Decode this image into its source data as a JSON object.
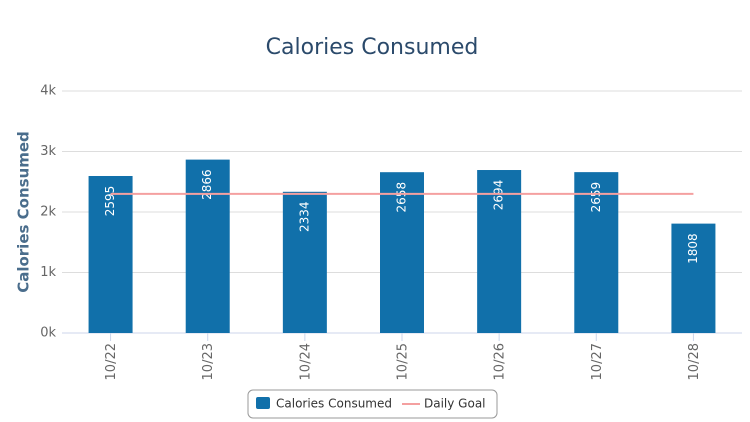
{
  "chart_data": {
    "type": "bar",
    "title": "Calories Consumed",
    "y_label": "Calories Consumed",
    "categories": [
      "10/22",
      "10/23",
      "10/24",
      "10/25",
      "10/26",
      "10/27",
      "10/28"
    ],
    "series": [
      {
        "name": "Calories Consumed",
        "type": "bar",
        "color": "#1170aa",
        "values": [
          2595,
          2866,
          2334,
          2658,
          2694,
          2659,
          1808
        ]
      },
      {
        "name": "Daily Goal",
        "type": "line",
        "color": "#f4a0a0",
        "values": [
          2300,
          2300,
          2300,
          2300,
          2300,
          2300,
          2300
        ]
      }
    ],
    "ylim": [
      0,
      4000
    ],
    "yticks": [
      {
        "value": 0,
        "label": "0k"
      },
      {
        "value": 1000,
        "label": "1k"
      },
      {
        "value": 2000,
        "label": "2k"
      },
      {
        "value": 3000,
        "label": "3k"
      },
      {
        "value": 4000,
        "label": "4k"
      }
    ],
    "grid": true,
    "legend": "bottom"
  }
}
